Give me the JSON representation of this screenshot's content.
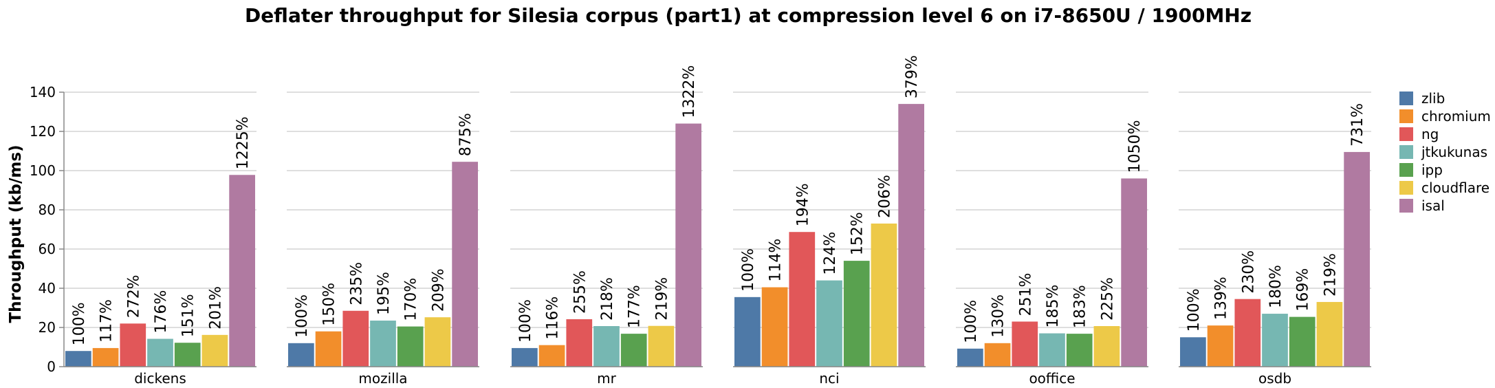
{
  "chart_data": {
    "type": "bar",
    "title": "Deflater throughput for Silesia corpus (part1) at compression level 6 on i7-8650U / 1900MHz",
    "ylabel": "Throughput (kb/ms)",
    "xlabel": "",
    "ylim": [
      0,
      140
    ],
    "yticks": [
      0,
      20,
      40,
      60,
      80,
      100,
      120,
      140
    ],
    "grid": true,
    "legend_position": "right",
    "categories": [
      "dickens",
      "mozilla",
      "mr",
      "nci",
      "ooffice",
      "osdb"
    ],
    "series": [
      {
        "name": "zlib",
        "color": "#4e79a7",
        "values": [
          8,
          12,
          9.5,
          35.5,
          9.2,
          15
        ],
        "labels": [
          "100%",
          "100%",
          "100%",
          "100%",
          "100%",
          "100%"
        ]
      },
      {
        "name": "chromium",
        "color": "#f28e2b",
        "values": [
          9.5,
          18,
          11,
          40.5,
          12,
          21
        ],
        "labels": [
          "117%",
          "150%",
          "116%",
          "114%",
          "130%",
          "139%"
        ]
      },
      {
        "name": "ng",
        "color": "#e15759",
        "values": [
          22,
          28.5,
          24.2,
          68.7,
          23,
          34.5
        ],
        "labels": [
          "272%",
          "235%",
          "255%",
          "194%",
          "251%",
          "230%"
        ]
      },
      {
        "name": "jtkukunas",
        "color": "#76b7b2",
        "values": [
          14.2,
          23.5,
          20.7,
          44,
          17,
          27
        ],
        "labels": [
          "176%",
          "195%",
          "218%",
          "124%",
          "185%",
          "180%"
        ]
      },
      {
        "name": "ipp",
        "color": "#59a14f",
        "values": [
          12.2,
          20.5,
          16.8,
          54,
          16.8,
          25.4
        ],
        "labels": [
          "151%",
          "170%",
          "177%",
          "152%",
          "183%",
          "169%"
        ]
      },
      {
        "name": "cloudflare",
        "color": "#edc948",
        "values": [
          16.2,
          25.2,
          20.8,
          73,
          20.7,
          33
        ],
        "labels": [
          "201%",
          "209%",
          "219%",
          "206%",
          "225%",
          "219%"
        ]
      },
      {
        "name": "isal",
        "color": "#b07aa1",
        "values": [
          97.8,
          104.5,
          124,
          134,
          96,
          109.5
        ],
        "labels": [
          "1225%",
          "875%",
          "1322%",
          "379%",
          "1050%",
          "731%"
        ]
      }
    ]
  }
}
